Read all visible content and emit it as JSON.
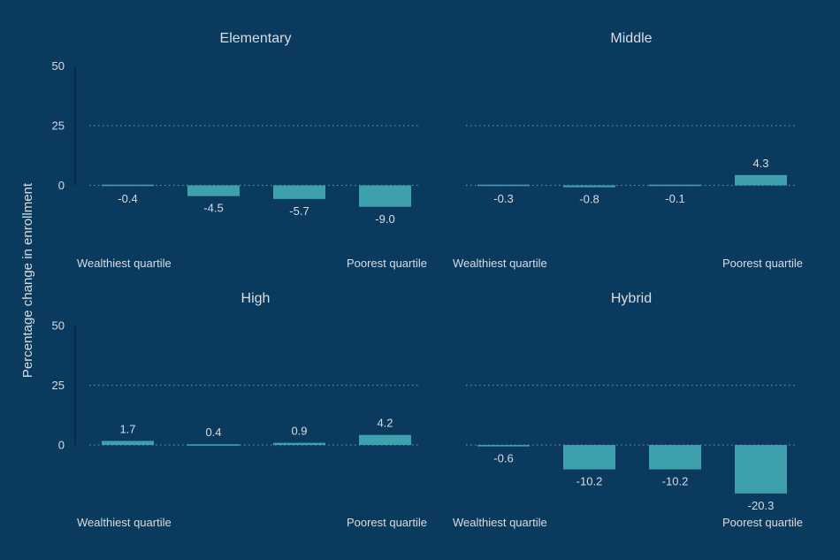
{
  "chart_data": {
    "type": "bar",
    "ylabel": "Percentage change in enrollment",
    "yticks": [
      0,
      25,
      50
    ],
    "ylim": [
      -20.3,
      50
    ],
    "grid": "dotted horizontal at 25",
    "end_labels": {
      "first": "Wealthiest quartile",
      "last": "Poorest quartile"
    },
    "colors": {
      "background": "#0b3a5f",
      "bar": "#3fa0ad",
      "text": "#d7dde3"
    },
    "panels": [
      {
        "title": "Elementary",
        "values": [
          -0.4,
          -4.5,
          -5.7,
          -9.0
        ],
        "labels": [
          "-0.4",
          "-4.5",
          "-5.7",
          "-9.0"
        ]
      },
      {
        "title": "Middle",
        "values": [
          -0.3,
          -0.8,
          -0.1,
          4.3
        ],
        "labels": [
          "-0.3",
          "-0.8",
          "-0.1",
          "4.3"
        ]
      },
      {
        "title": "High",
        "values": [
          1.7,
          0.4,
          0.9,
          4.2
        ],
        "labels": [
          "1.7",
          "0.4",
          "0.9",
          "4.2"
        ]
      },
      {
        "title": "Hybrid",
        "values": [
          -0.6,
          -10.2,
          -10.2,
          -20.3
        ],
        "labels": [
          "-0.6",
          "-10.2",
          "-10.2",
          "-20.3"
        ]
      }
    ]
  }
}
